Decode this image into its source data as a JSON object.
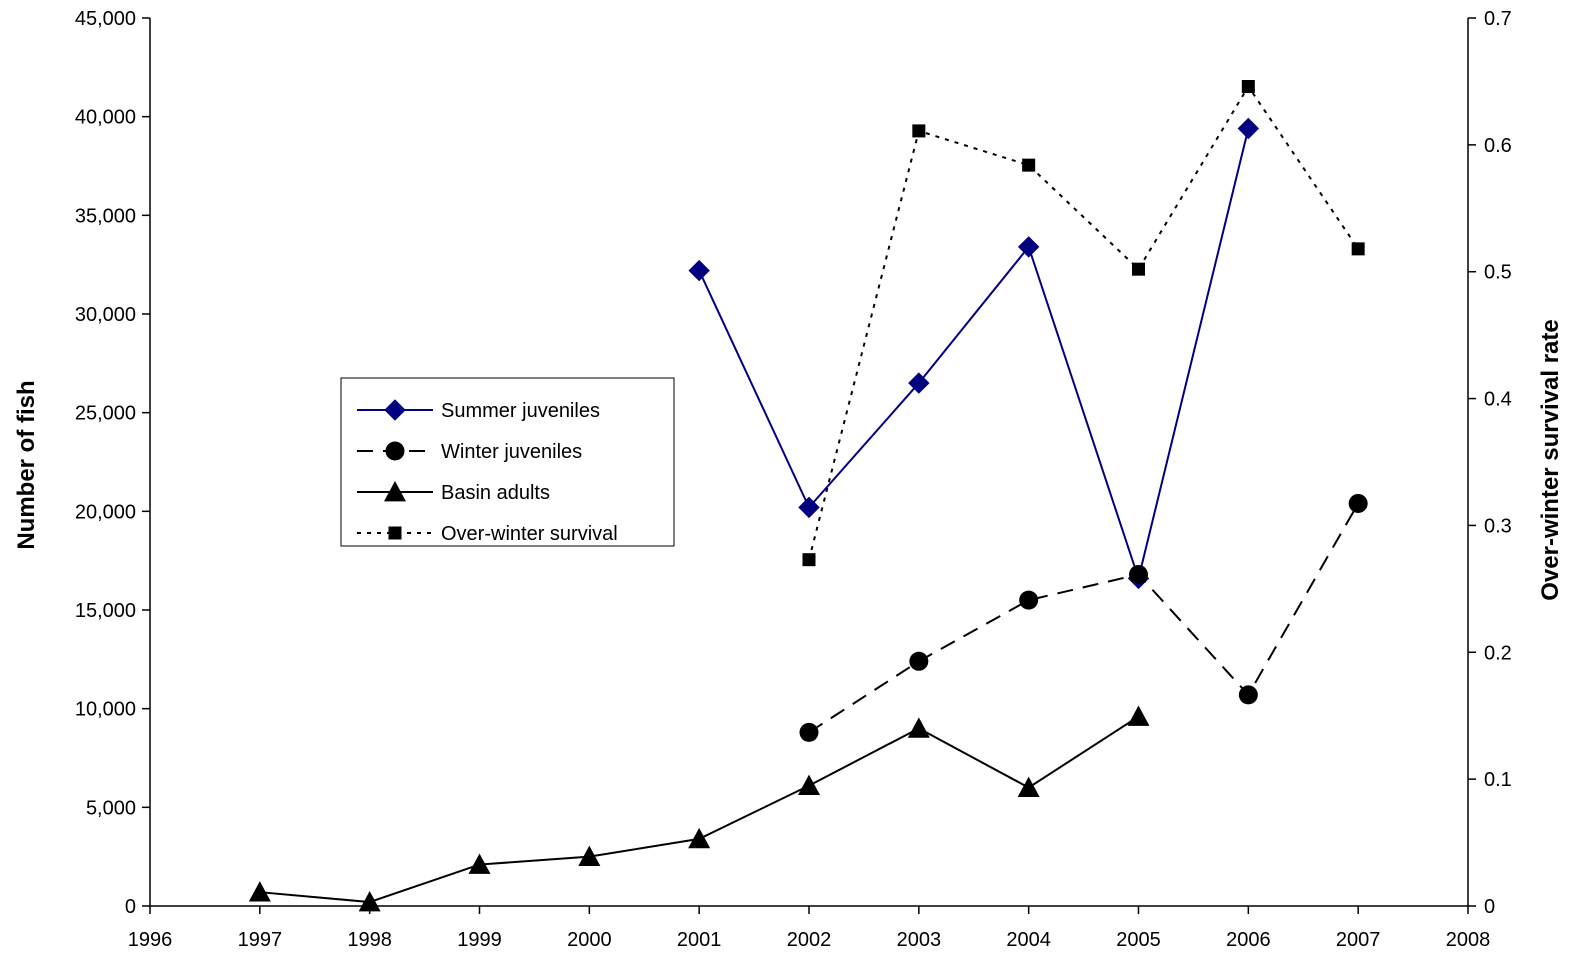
{
  "chart_data": {
    "type": "line",
    "title": "",
    "xlabel": "",
    "ylabel": "Number of fish",
    "y2label": "Over-winter survival rate",
    "xlim": [
      1996,
      2008
    ],
    "ylim": [
      0,
      45000
    ],
    "y2lim": [
      0,
      0.7
    ],
    "x_ticks": [
      1996,
      1997,
      1998,
      1999,
      2000,
      2001,
      2002,
      2003,
      2004,
      2005,
      2006,
      2007,
      2008
    ],
    "x_tick_labels": [
      "1996",
      "1997",
      "1998",
      "1999",
      "2000",
      "2001",
      "2002",
      "2003",
      "2004",
      "2005",
      "2006",
      "2007",
      "2008"
    ],
    "y_ticks": [
      0,
      5000,
      10000,
      15000,
      20000,
      25000,
      30000,
      35000,
      40000,
      45000
    ],
    "y_tick_labels": [
      "0",
      "5,000",
      "10,000",
      "15,000",
      "20,000",
      "25,000",
      "30,000",
      "35,000",
      "40,000",
      "45,000"
    ],
    "y2_ticks": [
      0,
      0.1,
      0.2,
      0.3,
      0.4,
      0.5,
      0.6,
      0.7
    ],
    "y2_tick_labels": [
      "0",
      "0.1",
      "0.2",
      "0.3",
      "0.4",
      "0.5",
      "0.6",
      "0.7"
    ],
    "grid": false,
    "legend_position": "center-left",
    "series": [
      {
        "name": "Summer juveniles",
        "axis": "left",
        "color": "#000080",
        "marker": "diamond",
        "dash": "solid",
        "x": [
          2001,
          2002,
          2003,
          2004,
          2005,
          2006
        ],
        "y": [
          32200,
          20200,
          26500,
          33400,
          16600,
          39400
        ]
      },
      {
        "name": "Winter juveniles",
        "axis": "left",
        "color": "#000000",
        "marker": "circle",
        "dash": "dashed",
        "x": [
          2002,
          2003,
          2004,
          2005,
          2006,
          2007
        ],
        "y": [
          8800,
          12400,
          15500,
          16800,
          10700,
          20400
        ]
      },
      {
        "name": "Basin adults",
        "axis": "left",
        "color": "#000000",
        "marker": "triangle",
        "dash": "solid",
        "x": [
          1997,
          1998,
          1999,
          2000,
          2001,
          2002,
          2003,
          2004,
          2005
        ],
        "y": [
          700,
          200,
          2100,
          2500,
          3400,
          6100,
          9000,
          6000,
          9600
        ]
      },
      {
        "name": "Over-winter survival",
        "axis": "right",
        "color": "#000000",
        "marker": "square",
        "dash": "dotted",
        "x": [
          2002,
          2003,
          2004,
          2005,
          2006,
          2007
        ],
        "y": [
          0.273,
          0.611,
          0.584,
          0.502,
          0.646,
          0.518
        ]
      }
    ]
  }
}
